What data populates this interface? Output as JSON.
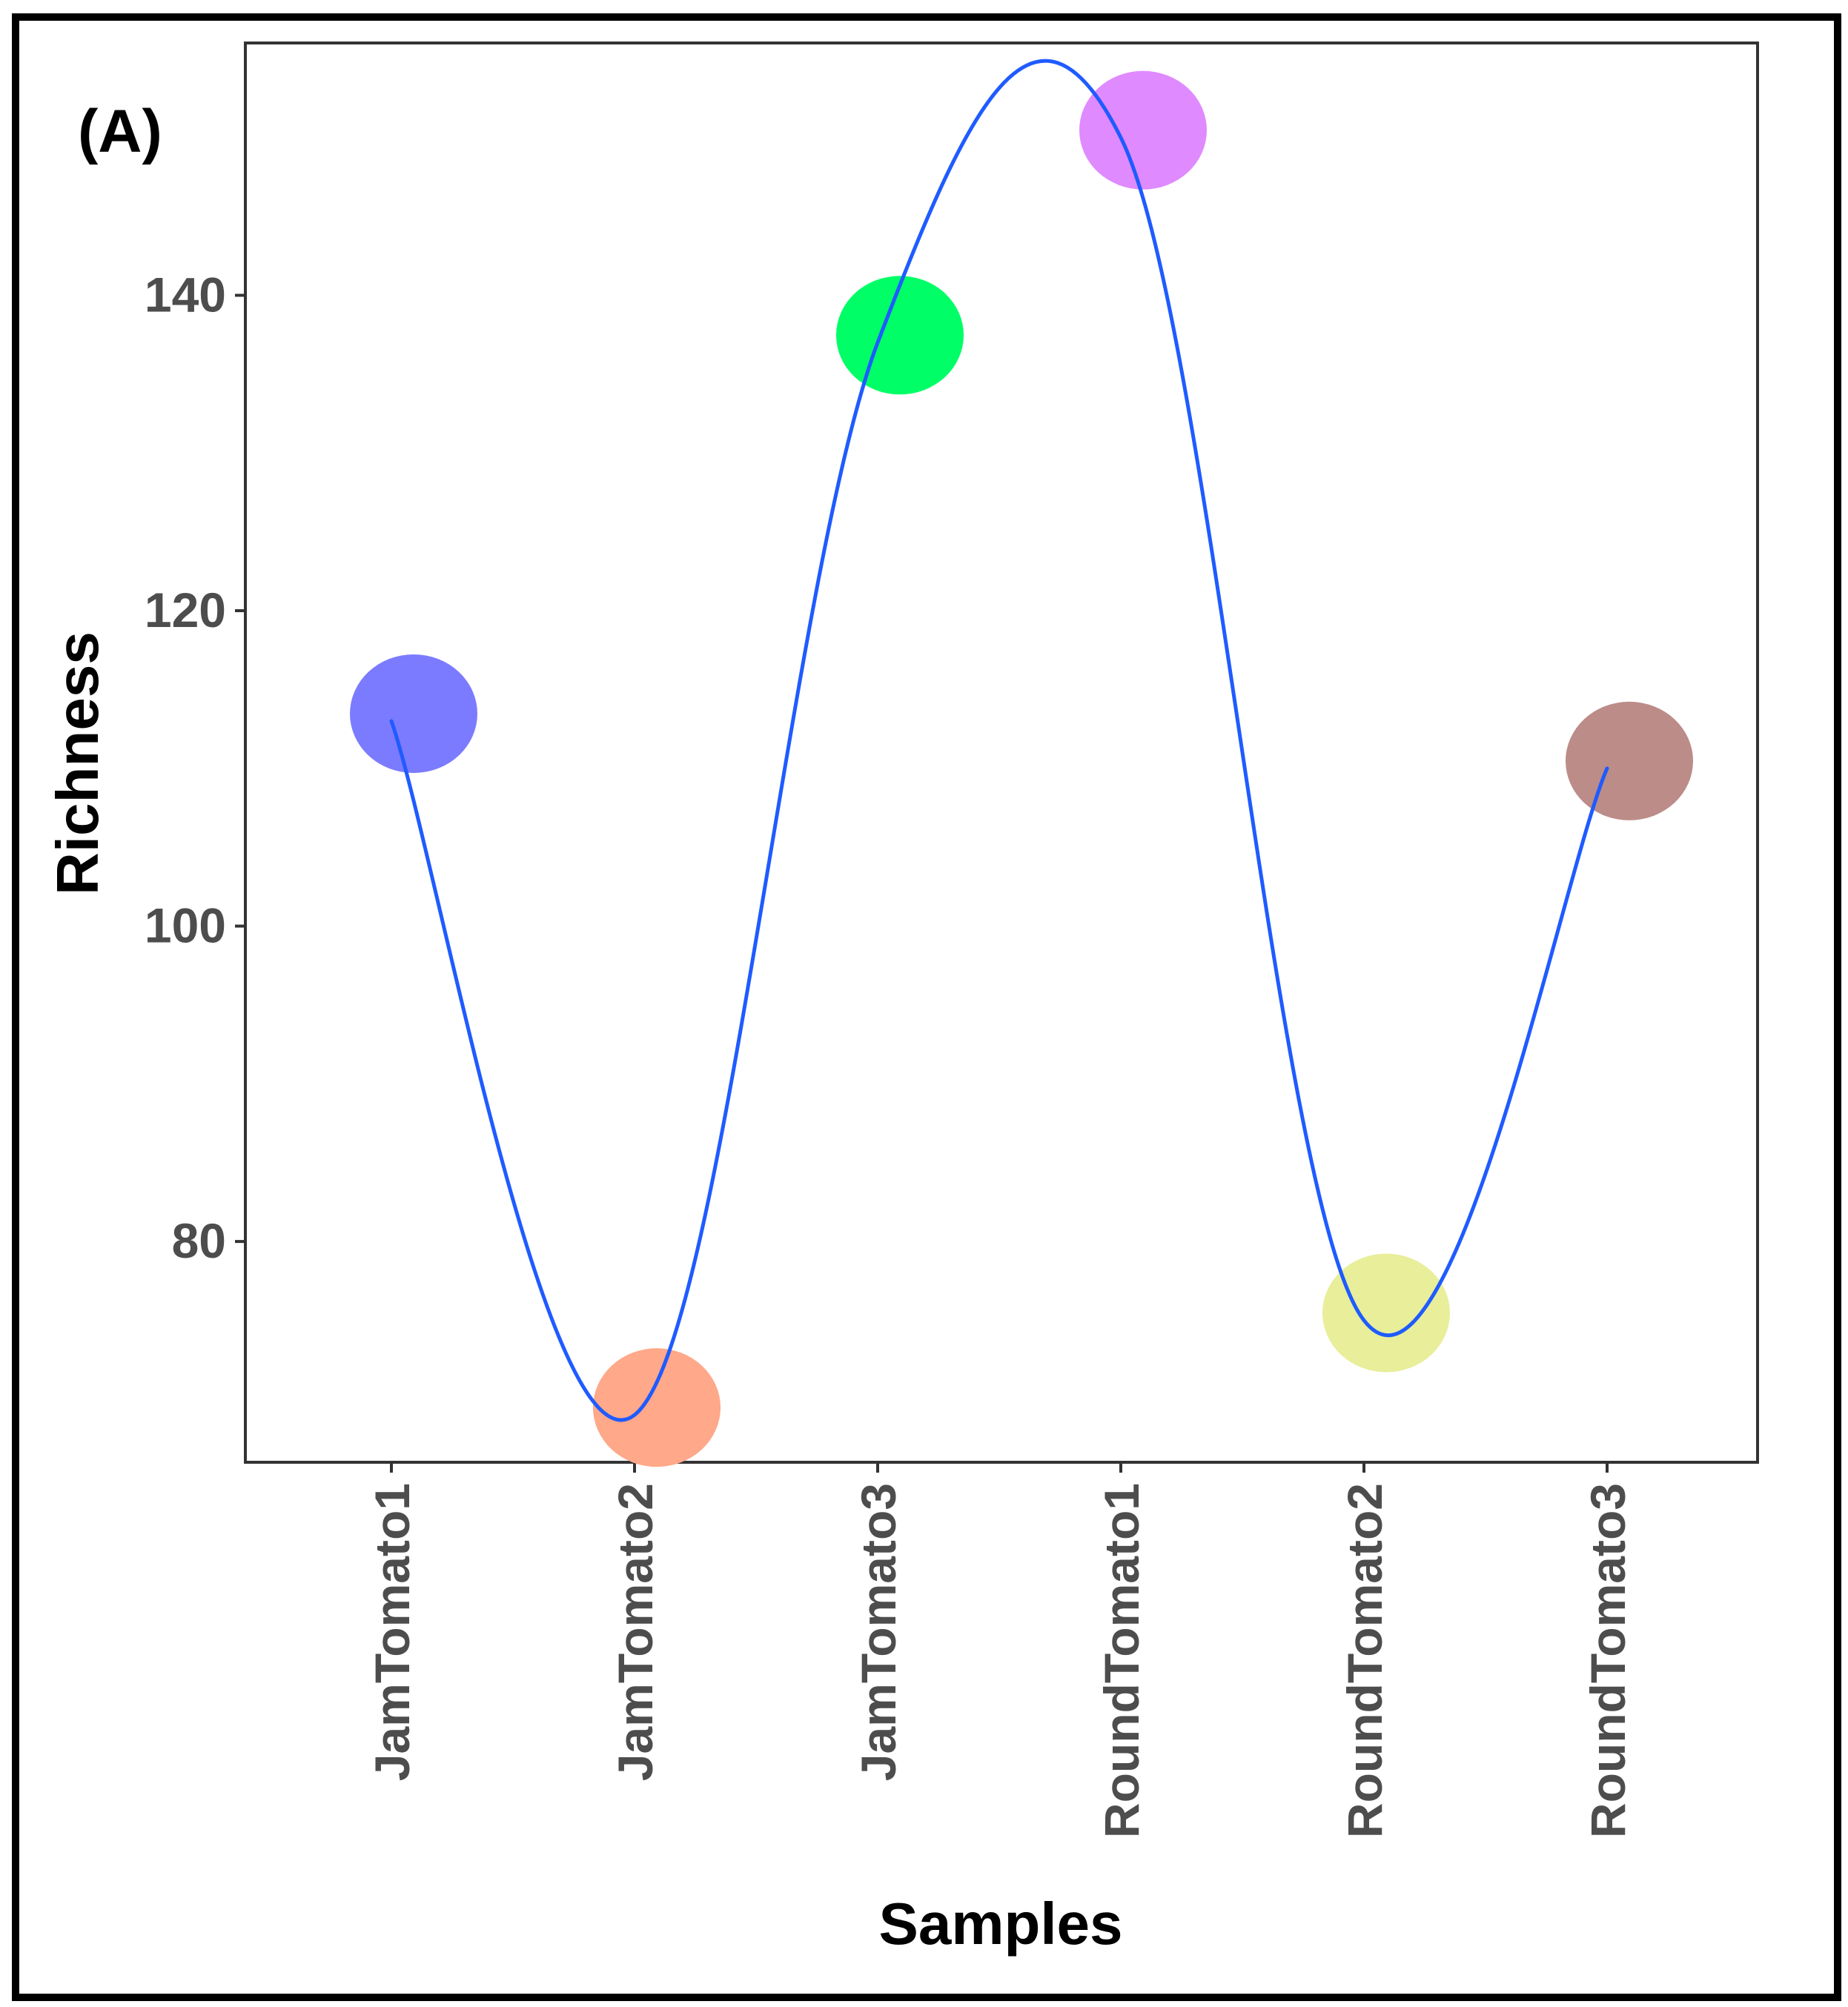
{
  "panel_label": "(A)",
  "chart_data": {
    "type": "line",
    "title": "",
    "xlabel": "Samples",
    "ylabel": "Richness",
    "categories": [
      "JamTomato1",
      "JamTomato2",
      "JamTomato3",
      "RoundTomato1",
      "RoundTomato2",
      "RoundTomato3"
    ],
    "series": [
      {
        "name": "Richness",
        "values": [
          113,
          69,
          137,
          150,
          75,
          110
        ],
        "line_color": "#1f5bff",
        "point_colors": [
          "#7b7bff",
          "#ffa88a",
          "#00ff66",
          "#e08aff",
          "#e8ee9a",
          "#bc8c88"
        ]
      }
    ],
    "yticks": [
      80,
      100,
      120,
      140
    ],
    "ylim": [
      66,
      156
    ],
    "grid": false,
    "legend": "none"
  }
}
